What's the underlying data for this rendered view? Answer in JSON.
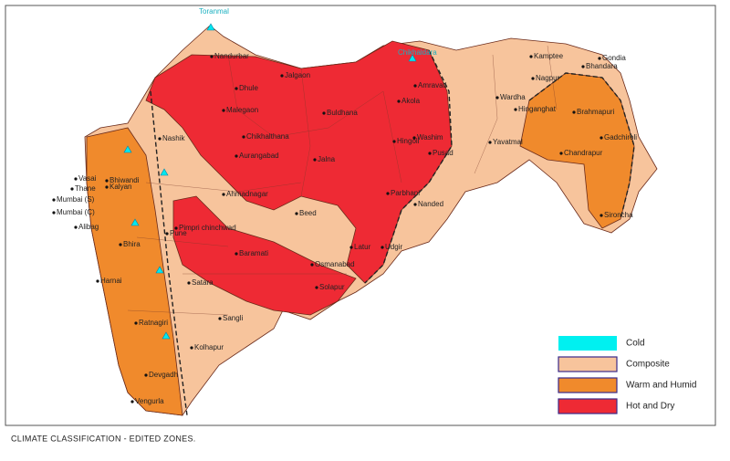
{
  "caption": "CLIMATE CLASSIFICATION - EDITED ZONES.",
  "legend": [
    {
      "label": "Cold",
      "color": "#00f0f0"
    },
    {
      "label": "Composite",
      "color": "#f7c49c"
    },
    {
      "label": "Warm and Humid",
      "color": "#f08a2c"
    },
    {
      "label": "Hot and Dry",
      "color": "#ee2a34"
    }
  ],
  "places": [
    {
      "name": "Toranmal"
    },
    {
      "name": "Nandurbar"
    },
    {
      "name": "Dhule"
    },
    {
      "name": "Jalgaon"
    },
    {
      "name": "Malegaon"
    },
    {
      "name": "Chikhaldara"
    },
    {
      "name": "Amravati"
    },
    {
      "name": "Kamptee"
    },
    {
      "name": "Gondia"
    },
    {
      "name": "Bhandara"
    },
    {
      "name": "Nagpur"
    },
    {
      "name": "Wardha"
    },
    {
      "name": "Hinganghat"
    },
    {
      "name": "Brahmapuri"
    },
    {
      "name": "Yavatmal"
    },
    {
      "name": "Gadchiroli"
    },
    {
      "name": "Chandrapur"
    },
    {
      "name": "Sironcha"
    },
    {
      "name": "Akola"
    },
    {
      "name": "Buldhana"
    },
    {
      "name": "Washim"
    },
    {
      "name": "Pusad"
    },
    {
      "name": "Hingoli"
    },
    {
      "name": "Nashik"
    },
    {
      "name": "Chikhalthana"
    },
    {
      "name": "Aurangabad"
    },
    {
      "name": "Jalna"
    },
    {
      "name": "Parbhani"
    },
    {
      "name": "Nanded"
    },
    {
      "name": "Beed"
    },
    {
      "name": "Ahmadnagar"
    },
    {
      "name": "Pimpri chinchwad"
    },
    {
      "name": "Pune"
    },
    {
      "name": "Baramati"
    },
    {
      "name": "Osmanabad"
    },
    {
      "name": "Latur"
    },
    {
      "name": "Udgir"
    },
    {
      "name": "Solapur"
    },
    {
      "name": "Satara"
    },
    {
      "name": "Sangli"
    },
    {
      "name": "Kolhapur"
    },
    {
      "name": "Harnai"
    },
    {
      "name": "Ratnagiri"
    },
    {
      "name": "Devgadh"
    },
    {
      "name": "Vengurla"
    },
    {
      "name": "Bhira"
    },
    {
      "name": "Alibag"
    },
    {
      "name": "Mumbai (C)"
    },
    {
      "name": "Mumbai (S)"
    },
    {
      "name": "Thane"
    },
    {
      "name": "Vasai"
    },
    {
      "name": "Bhiwandi"
    },
    {
      "name": "Kalyan"
    }
  ]
}
